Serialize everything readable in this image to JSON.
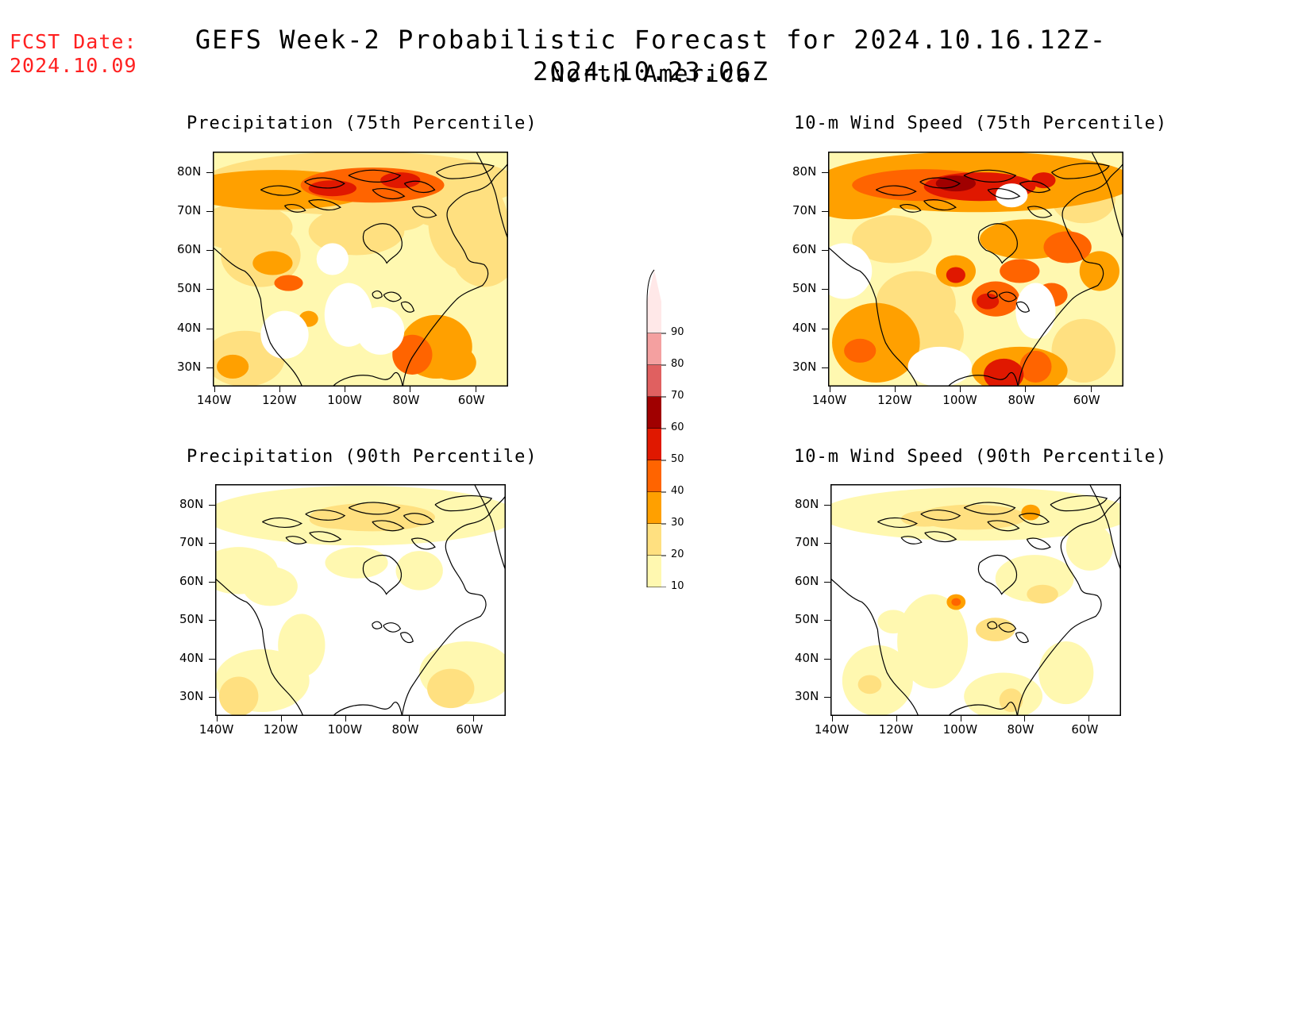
{
  "header": {
    "fcst_label": "FCST Date:",
    "fcst_date": "2024.10.09",
    "title": "GEFS Week-2 Probabilistic Forecast for 2024.10.16.12Z-2024.10.23.06Z",
    "subtitle": "North America"
  },
  "axes": {
    "lat_labels": [
      "80N",
      "70N",
      "60N",
      "50N",
      "40N",
      "30N"
    ],
    "lon_labels": [
      "140W",
      "120W",
      "100W",
      "80W",
      "60W"
    ]
  },
  "panels": [
    {
      "id": "precip75",
      "title": "Precipitation (75th Percentile)",
      "field": "precipitation",
      "percentile": 75
    },
    {
      "id": "wind75",
      "title": "10-m Wind Speed (75th Percentile)",
      "field": "wind_speed",
      "percentile": 75
    },
    {
      "id": "precip90",
      "title": "Precipitation (90th Percentile)",
      "field": "precipitation",
      "percentile": 90
    },
    {
      "id": "wind90",
      "title": "10-m Wind Speed (90th Percentile)",
      "field": "wind_speed",
      "percentile": 90
    }
  ],
  "colorbar": {
    "levels": [
      "90",
      "80",
      "70",
      "60",
      "50",
      "40",
      "30",
      "20",
      "10"
    ],
    "colors": [
      "#ffe8e8",
      "#f4a0a0",
      "#e06060",
      "#a00000",
      "#e01800",
      "#ff6400",
      "#ffa000",
      "#ffe080",
      "#fff8b0"
    ]
  }
}
